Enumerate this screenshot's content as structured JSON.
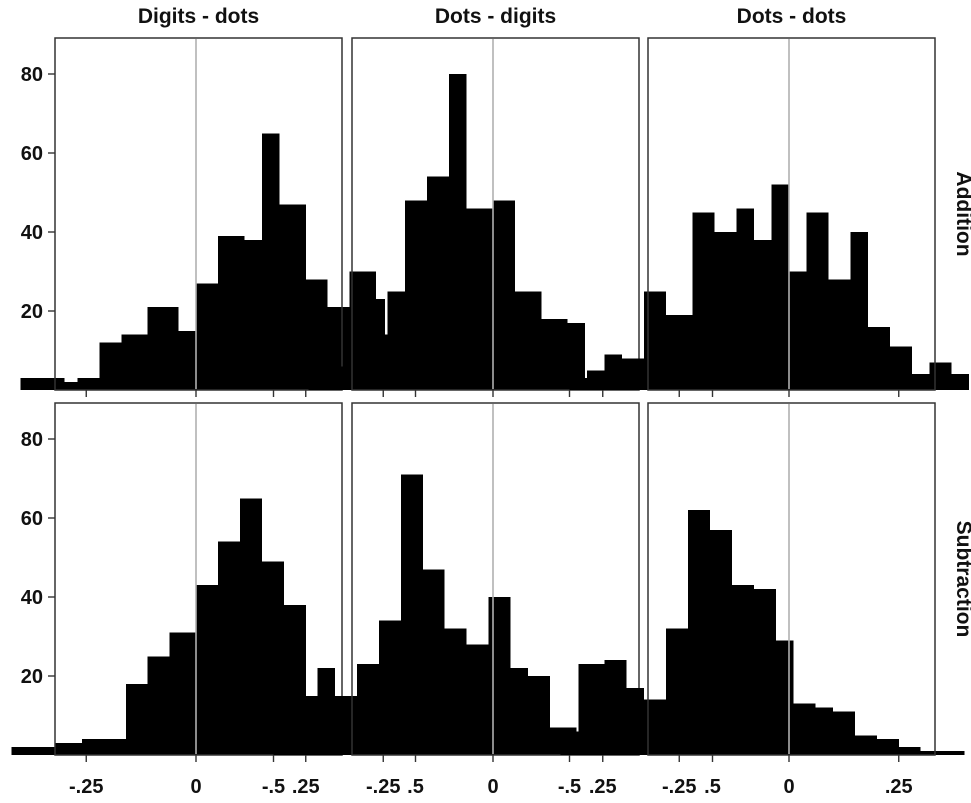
{
  "chart_data": {
    "type": "histogram-grid",
    "columns": [
      "Digits - dots",
      "Dots - digits",
      "Dots - dots"
    ],
    "rows": [
      "Addition",
      "Subtraction"
    ],
    "x_ticks": [
      {
        "value": -0.5,
        "label": "-.5"
      },
      {
        "value": -0.25,
        "label": "-.25"
      },
      {
        "value": 0,
        "label": "0"
      },
      {
        "value": 0.25,
        "label": ".25"
      },
      {
        "value": 0.5,
        "label": ".5"
      }
    ],
    "y_ticks": [
      {
        "value": 20,
        "label": "20"
      },
      {
        "value": 40,
        "label": "40"
      },
      {
        "value": 60,
        "label": "60"
      },
      {
        "value": 80,
        "label": "80"
      }
    ],
    "xlim": [
      -0.65,
      0.65
    ],
    "ylim": [
      0,
      88
    ],
    "reference_line_x": 0,
    "bar_color": "#000000",
    "reference_line_color": "#b0b0b0",
    "frame_color": "#333333",
    "panels": [
      {
        "row": "Addition",
        "column": "Digits - dots",
        "bins": [
          [
            -0.4,
            -0.375,
            3
          ],
          [
            -0.375,
            -0.3,
            3
          ],
          [
            -0.3,
            -0.27,
            2
          ],
          [
            -0.27,
            -0.22,
            3
          ],
          [
            -0.22,
            -0.17,
            12
          ],
          [
            -0.17,
            -0.11,
            14
          ],
          [
            -0.11,
            -0.04,
            21
          ],
          [
            -0.04,
            0,
            15
          ],
          [
            0,
            0.05,
            27
          ],
          [
            0.05,
            0.11,
            39
          ],
          [
            0.11,
            0.15,
            38
          ],
          [
            0.15,
            0.19,
            65
          ],
          [
            0.19,
            0.25,
            47
          ],
          [
            0.25,
            0.3,
            28
          ],
          [
            0.3,
            0.35,
            21
          ],
          [
            0.35,
            0.41,
            30
          ],
          [
            0.41,
            0.43,
            23
          ]
        ]
      },
      {
        "row": "Addition",
        "column": "Dots - digits",
        "bins": [
          [
            -0.42,
            -0.35,
            1
          ],
          [
            -0.35,
            -0.3,
            6
          ],
          [
            -0.3,
            -0.24,
            14
          ],
          [
            -0.24,
            -0.2,
            25
          ],
          [
            -0.2,
            -0.15,
            48
          ],
          [
            -0.15,
            -0.1,
            54
          ],
          [
            -0.1,
            -0.06,
            80
          ],
          [
            -0.06,
            0,
            46
          ],
          [
            0,
            0.05,
            48
          ],
          [
            0.05,
            0.11,
            25
          ],
          [
            0.11,
            0.17,
            18
          ],
          [
            0.17,
            0.21,
            17
          ],
          [
            0.21,
            0.24,
            3
          ]
        ]
      },
      {
        "row": "Addition",
        "column": "Dots - dots",
        "bins": [
          [
            -0.5,
            -0.46,
            3
          ],
          [
            -0.46,
            -0.42,
            5
          ],
          [
            -0.42,
            -0.38,
            9
          ],
          [
            -0.38,
            -0.33,
            8
          ],
          [
            -0.33,
            -0.28,
            25
          ],
          [
            -0.28,
            -0.22,
            19
          ],
          [
            -0.22,
            -0.17,
            45
          ],
          [
            -0.17,
            -0.12,
            40
          ],
          [
            -0.12,
            -0.08,
            46
          ],
          [
            -0.08,
            -0.04,
            38
          ],
          [
            -0.04,
            0,
            52
          ],
          [
            0,
            0.04,
            30
          ],
          [
            0.04,
            0.09,
            45
          ],
          [
            0.09,
            0.14,
            28
          ],
          [
            0.14,
            0.18,
            40
          ],
          [
            0.18,
            0.23,
            16
          ],
          [
            0.23,
            0.28,
            11
          ],
          [
            0.28,
            0.32,
            4
          ],
          [
            0.32,
            0.37,
            7
          ],
          [
            0.37,
            0.41,
            4
          ]
        ]
      },
      {
        "row": "Subtraction",
        "column": "Digits - dots",
        "bins": [
          [
            -0.42,
            -0.37,
            2
          ],
          [
            -0.37,
            -0.32,
            2
          ],
          [
            -0.32,
            -0.26,
            3
          ],
          [
            -0.26,
            -0.21,
            4
          ],
          [
            -0.21,
            -0.16,
            4
          ],
          [
            -0.16,
            -0.11,
            18
          ],
          [
            -0.11,
            -0.06,
            25
          ],
          [
            -0.06,
            0,
            31
          ],
          [
            0,
            0.05,
            43
          ],
          [
            0.05,
            0.1,
            54
          ],
          [
            0.1,
            0.15,
            65
          ],
          [
            0.15,
            0.2,
            49
          ],
          [
            0.2,
            0.25,
            38
          ],
          [
            0.25,
            0.3,
            15
          ],
          [
            0.3,
            0.35,
            15
          ],
          [
            0.35,
            0.4,
            14
          ],
          [
            0.4,
            0.43,
            5
          ]
        ]
      },
      {
        "row": "Subtraction",
        "column": "Dots - digits",
        "bins": [
          [
            -0.5,
            -0.45,
            8
          ],
          [
            -0.45,
            -0.4,
            15
          ],
          [
            -0.4,
            -0.36,
            22
          ],
          [
            -0.36,
            -0.31,
            15
          ],
          [
            -0.31,
            -0.26,
            23
          ],
          [
            -0.26,
            -0.21,
            34
          ],
          [
            -0.21,
            -0.16,
            71
          ],
          [
            -0.16,
            -0.11,
            47
          ],
          [
            -0.11,
            -0.06,
            32
          ],
          [
            -0.06,
            -0.01,
            28
          ],
          [
            -0.01,
            0.04,
            40
          ],
          [
            0.04,
            0.08,
            22
          ],
          [
            0.08,
            0.13,
            20
          ],
          [
            0.13,
            0.19,
            7
          ],
          [
            0.19,
            0.23,
            6
          ],
          [
            0.23,
            0.27,
            3
          ]
        ]
      },
      {
        "row": "Subtraction",
        "column": "Dots - dots",
        "bins": [
          [
            -0.52,
            -0.48,
            4
          ],
          [
            -0.48,
            -0.42,
            23
          ],
          [
            -0.42,
            -0.37,
            24
          ],
          [
            -0.37,
            -0.33,
            17
          ],
          [
            -0.33,
            -0.28,
            14
          ],
          [
            -0.28,
            -0.23,
            32
          ],
          [
            -0.23,
            -0.18,
            62
          ],
          [
            -0.18,
            -0.13,
            57
          ],
          [
            -0.13,
            -0.08,
            43
          ],
          [
            -0.08,
            -0.03,
            42
          ],
          [
            -0.03,
            0.01,
            29
          ],
          [
            0.01,
            0.06,
            13
          ],
          [
            0.06,
            0.1,
            12
          ],
          [
            0.1,
            0.15,
            11
          ],
          [
            0.15,
            0.2,
            5
          ],
          [
            0.2,
            0.25,
            4
          ],
          [
            0.25,
            0.3,
            2
          ],
          [
            0.3,
            0.35,
            1
          ],
          [
            0.35,
            0.4,
            1
          ]
        ]
      }
    ]
  }
}
